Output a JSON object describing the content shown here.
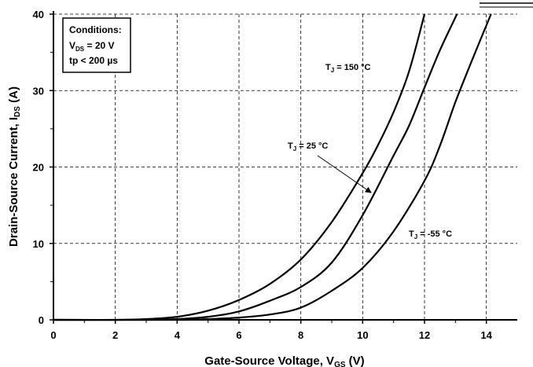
{
  "chart_data": {
    "type": "line",
    "xlabel": "Gate-Source Voltage, V",
    "xlabel_sub": "GS",
    "xlabel_suffix": " (V)",
    "ylabel": "Drain-Source Current, I",
    "ylabel_sub": "DS",
    "ylabel_suffix": " (A)",
    "xlim": [
      0,
      15
    ],
    "ylim": [
      0,
      40
    ],
    "xticks": [
      0,
      2,
      4,
      6,
      8,
      10,
      12,
      14
    ],
    "yticks": [
      0,
      10,
      20,
      30,
      40
    ],
    "grid": true,
    "conditions": {
      "title": "Conditions:",
      "line1_pre": "V",
      "line1_sub": "DS",
      "line1_post": " = 20 V",
      "line2": "tp < 200 µs"
    },
    "series": [
      {
        "name": "TJ = 150 °C",
        "label_pre": "T",
        "label_sub": "J",
        "label_post": " = 150 °C",
        "points": [
          [
            0,
            0
          ],
          [
            2,
            0
          ],
          [
            3,
            0.1
          ],
          [
            4,
            0.4
          ],
          [
            5,
            1.2
          ],
          [
            6,
            2.6
          ],
          [
            7,
            4.7
          ],
          [
            8,
            7.9
          ],
          [
            9,
            12.8
          ],
          [
            10,
            19.2
          ],
          [
            10.5,
            22.9
          ],
          [
            11,
            27.2
          ],
          [
            11.5,
            32.5
          ],
          [
            12,
            40
          ]
        ]
      },
      {
        "name": "TJ = 25 °C",
        "label_pre": "T",
        "label_sub": "J",
        "label_post": " = 25 °C",
        "points": [
          [
            0,
            0
          ],
          [
            3,
            0
          ],
          [
            4,
            0.1
          ],
          [
            5,
            0.4
          ],
          [
            6,
            1.1
          ],
          [
            7,
            2.5
          ],
          [
            8,
            4.3
          ],
          [
            9,
            7.5
          ],
          [
            10,
            13.7
          ],
          [
            11,
            21.5
          ],
          [
            11.5,
            25.4
          ],
          [
            12,
            30.4
          ],
          [
            12.5,
            35.3
          ],
          [
            13.05,
            40
          ]
        ]
      },
      {
        "name": "TJ = -55 °C",
        "label_pre": "T",
        "label_sub": "J",
        "label_post": " = -55 °C",
        "points": [
          [
            0,
            0
          ],
          [
            4,
            0
          ],
          [
            5,
            0.1
          ],
          [
            6,
            0.3
          ],
          [
            7,
            0.7
          ],
          [
            8,
            1.6
          ],
          [
            9,
            3.8
          ],
          [
            10,
            6.8
          ],
          [
            11,
            11.6
          ],
          [
            12,
            18.2
          ],
          [
            12.5,
            22.8
          ],
          [
            13,
            28.5
          ],
          [
            13.5,
            33.6
          ],
          [
            14.15,
            40
          ]
        ]
      }
    ]
  }
}
